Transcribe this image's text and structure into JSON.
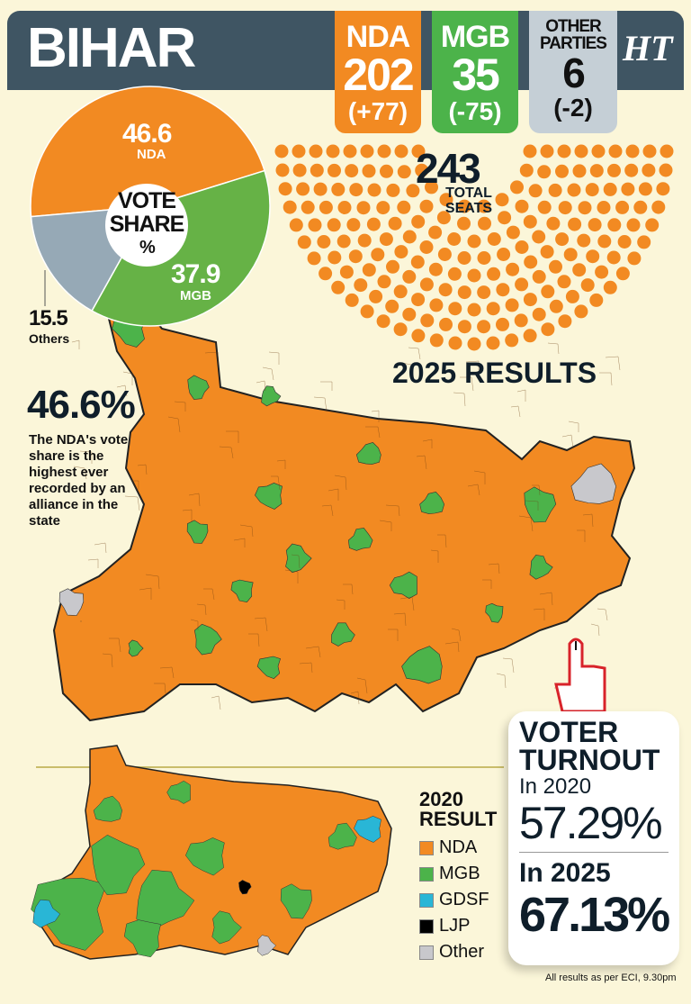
{
  "header": {
    "title": "BIHAR",
    "logo": "HT"
  },
  "seats": {
    "nda": {
      "label": "NDA",
      "count": "202",
      "change": "(+77)",
      "color": "#f28a22"
    },
    "mgb": {
      "label": "MGB",
      "count": "35",
      "change": "(-75)",
      "color": "#4cb34a"
    },
    "others": {
      "label": "OTHER PARTIES",
      "count": "6",
      "change": "(-2)",
      "color": "#a9b7c2"
    },
    "total": "243",
    "total_label": "TOTAL SEATS"
  },
  "vote_share": {
    "center_label": "VOTE SHARE",
    "unit": "%",
    "slices": [
      {
        "value": "46.6",
        "label": "NDA",
        "color": "#f28a22"
      },
      {
        "value": "37.9",
        "label": "MGB",
        "color": "#66b246"
      },
      {
        "value": "15.5",
        "label": "Others",
        "color": "#96a9b6"
      }
    ]
  },
  "results_title": "2025 RESULTS",
  "callout": {
    "value": "46.6%",
    "text": "The NDA's vote share is the highest ever recorded by an alliance in the state"
  },
  "legend_2020": {
    "title": "2020 RESULT",
    "items": [
      {
        "label": "NDA",
        "color": "#f28a22"
      },
      {
        "label": "MGB",
        "color": "#4cb34a"
      },
      {
        "label": "GDSF",
        "color": "#29b6d6"
      },
      {
        "label": "LJP",
        "color": "#000000"
      },
      {
        "label": "Other",
        "color": "#c8c8cc"
      }
    ]
  },
  "turnout": {
    "title": "VOTER TURNOUT",
    "label_2020": "In 2020",
    "value_2020": "57.29%",
    "label_2025": "In 2025",
    "value_2025": "67.13%"
  },
  "footnote": "All results as per ECI, 9.30pm"
}
